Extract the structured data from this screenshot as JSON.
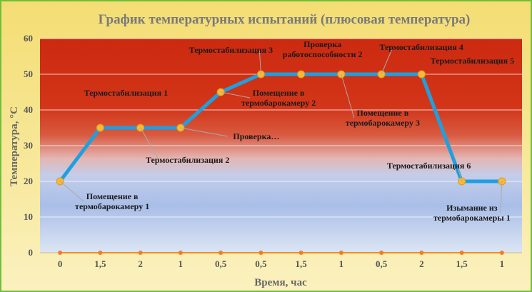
{
  "chart_data": {
    "type": "line",
    "title": "График температурных испытаний (плюсовая температура)",
    "xlabel": "Время, час",
    "ylabel": "Температура, °С",
    "ylim": [
      0,
      60
    ],
    "yticks": [
      0,
      10,
      20,
      30,
      40,
      50,
      60
    ],
    "categories": [
      "0",
      "1,5",
      "2",
      "1",
      "0,5",
      "0,5",
      "1,5",
      "1",
      "0,5",
      "2",
      "1,5",
      "1"
    ],
    "grid": true,
    "legend": "none",
    "series": [
      {
        "values": [
          20,
          35,
          35,
          35,
          45,
          50,
          50,
          50,
          50,
          50,
          20,
          20
        ]
      },
      {
        "values": [
          0,
          0,
          0,
          0,
          0,
          0,
          0,
          0,
          0,
          0,
          0,
          0
        ]
      }
    ],
    "annotations": [
      {
        "point": 0,
        "lines": [
          "Помещение в",
          "термобарокамеру 1"
        ]
      },
      {
        "point": 1,
        "lines": [
          "Термостабилизация 1"
        ]
      },
      {
        "point": 2,
        "lines": [
          "Термостабилизация 2"
        ]
      },
      {
        "point": 3,
        "lines": [
          "Проверка…"
        ]
      },
      {
        "point": 4,
        "lines": [
          "Помещение в",
          "термобарокамеру 2"
        ]
      },
      {
        "point": 5,
        "lines": [
          "Термостабилизация 3"
        ]
      },
      {
        "point": 6,
        "lines": [
          "Проверка",
          "работоспособности 2"
        ]
      },
      {
        "point": 7,
        "lines": [
          "Помещение в",
          "термобарокамеру 3"
        ]
      },
      {
        "point": 8,
        "lines": [
          "Термостабилизация 4"
        ]
      },
      {
        "point": 9,
        "lines": [
          "Термостабилизация 5"
        ]
      },
      {
        "point": 10,
        "lines": [
          "Термостабилизация 6"
        ]
      },
      {
        "point": 11,
        "lines": [
          "Изымание из",
          "термобарокамеры 1"
        ]
      }
    ],
    "colors": {
      "main_line": "#1ea0e0",
      "marker_fill": "#f6b93a",
      "marker_stroke": "#e39a1b",
      "baseline": "#f08c2a",
      "baseline_marker": "#ef7d2a",
      "band_hot": "#cf2a12",
      "band_cool": "#a9bfe6"
    }
  }
}
